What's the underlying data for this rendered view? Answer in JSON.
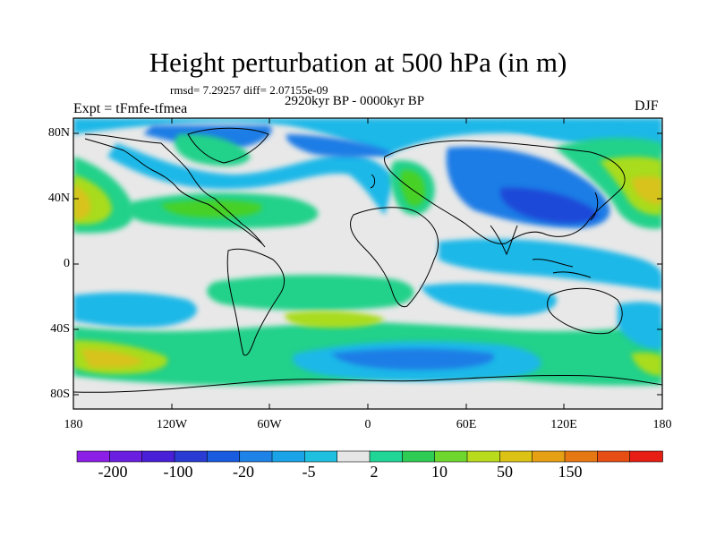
{
  "title": "Height perturbation at 500 hPa (in m)",
  "stats": "rmsd= 7.29257 diff= 2.07155e-09",
  "period": "2920kyr BP - 0000kyr BP",
  "experiment": "Expt = tFmfe-tfmea",
  "season": "DJF",
  "axes": {
    "y_ticks": [
      "80N",
      "40N",
      "0",
      "40S",
      "80S"
    ],
    "x_ticks": [
      "180",
      "120W",
      "60W",
      "0",
      "60E",
      "120E",
      "180"
    ]
  },
  "colorbar": {
    "labels": [
      "-200",
      "-100",
      "-20",
      "-5",
      "2",
      "10",
      "50",
      "150"
    ],
    "colors": [
      "#8c1fe6",
      "#6a1ee0",
      "#4a1fd8",
      "#2a3bd4",
      "#1a5ce0",
      "#1f82e6",
      "#1aa3e6",
      "#1fbfe0",
      "#e6e6e6",
      "#1fd696",
      "#2ecc55",
      "#6fd62e",
      "#b8dc1c",
      "#dcc214",
      "#e6a014",
      "#e67814",
      "#e64e14",
      "#e61e14"
    ]
  },
  "colors": {
    "neutral": "#e8e8e8",
    "blue_light": "#1ab8e8",
    "blue_mid": "#1f7de6",
    "blue_dark": "#1f4ad8",
    "green": "#22d18a",
    "green_mid": "#47d128",
    "yellow_green": "#a8dc1c",
    "yellow": "#d8c31a"
  }
}
